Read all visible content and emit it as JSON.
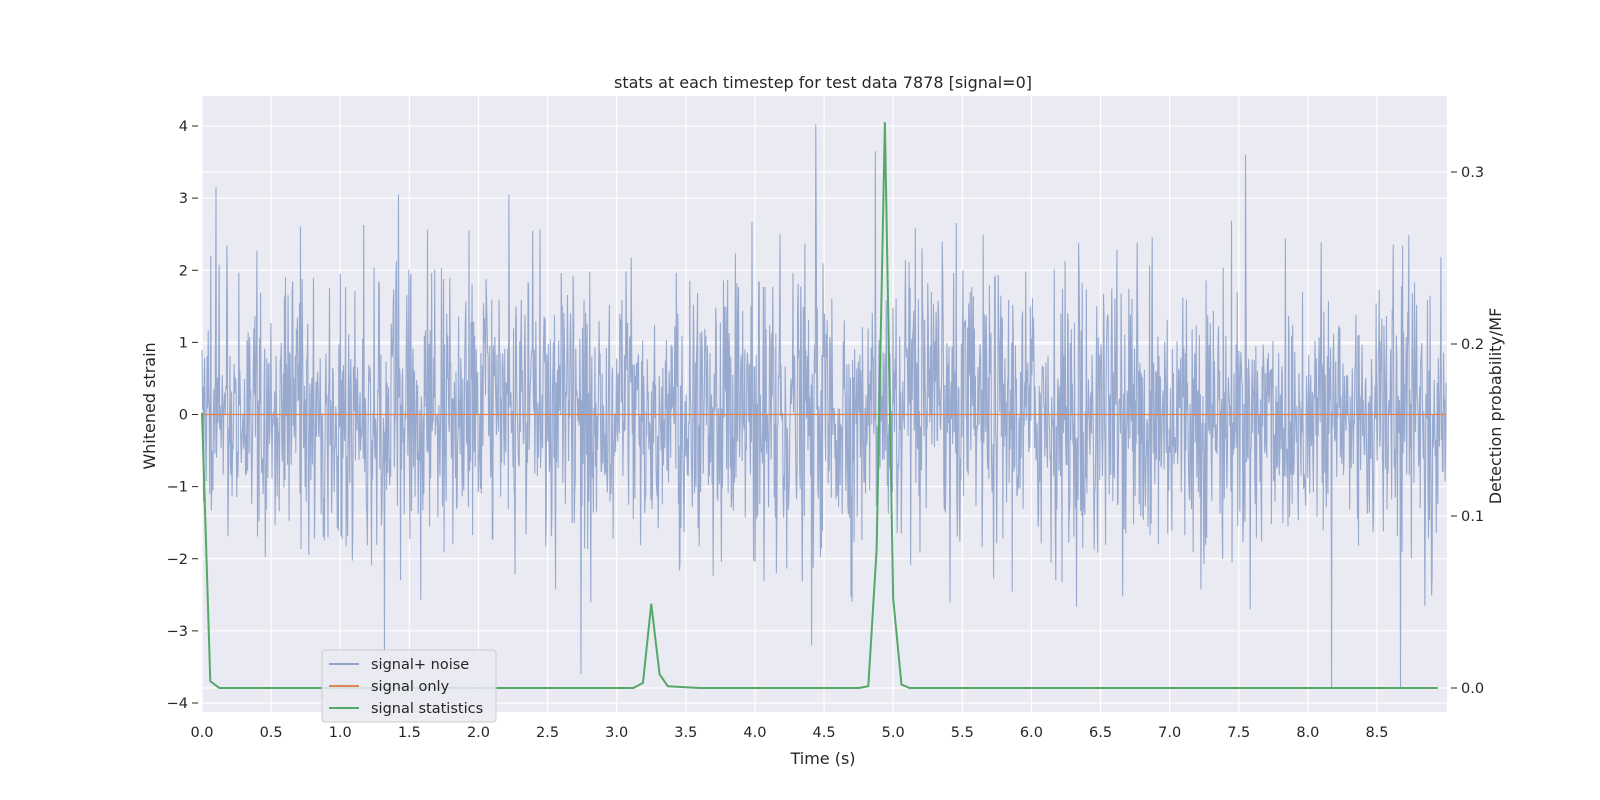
{
  "chart_data": {
    "type": "line",
    "title": "stats at each timestep for test data 7878 [signal=0]",
    "xlabel": "Time (s)",
    "ylabel": "Whitened strain",
    "y2label": "Detection probability/MF",
    "xlim": [
      0.0,
      9.0
    ],
    "ylim": [
      -4.15,
      4.4
    ],
    "y2lim": [
      -0.015,
      0.33
    ],
    "x_ticks": [
      "0.0",
      "0.5",
      "1.0",
      "1.5",
      "2.0",
      "2.5",
      "3.0",
      "3.5",
      "4.0",
      "4.5",
      "5.0",
      "5.5",
      "6.0",
      "6.5",
      "7.0",
      "7.5",
      "8.0",
      "8.5"
    ],
    "y_ticks": [
      "4",
      "3",
      "2",
      "1",
      "0",
      "−1",
      "−2",
      "−3",
      "−4"
    ],
    "y2_ticks": [
      "0.3",
      "0.2",
      "0.1",
      "0.0"
    ],
    "grid": true,
    "legend_position": "lower-left",
    "colors": {
      "noise": "#8ea2ca",
      "signal": "#dd8452",
      "stats": "#55a868",
      "background": "#eaeaf2",
      "grid": "#ffffff"
    },
    "series": [
      {
        "name": "signal+ noise",
        "description_of_values": "dense whitened noise, range approx -3.8 to 4.0",
        "spikes": [
          {
            "x": 4.44,
            "y": 4.02
          },
          {
            "x": 4.87,
            "y": 3.65
          },
          {
            "x": 7.55,
            "y": 3.6
          },
          {
            "x": 0.1,
            "y": 3.15
          },
          {
            "x": 1.42,
            "y": 3.05
          },
          {
            "x": 2.22,
            "y": 3.05
          },
          {
            "x": 8.17,
            "y": -3.8
          },
          {
            "x": 8.67,
            "y": -3.8
          },
          {
            "x": 2.74,
            "y": -3.6
          },
          {
            "x": 4.41,
            "y": -3.2
          },
          {
            "x": 1.32,
            "y": -3.3
          }
        ]
      },
      {
        "name": "signal only",
        "x": [
          0.0,
          9.0
        ],
        "y": [
          0.0,
          0.0
        ]
      },
      {
        "name": "signal statistics",
        "axis": "right",
        "x": [
          0.0,
          0.06,
          0.125,
          0.19,
          3.12,
          3.19,
          3.25,
          3.31,
          3.37,
          3.6,
          4.75,
          4.82,
          4.88,
          4.94,
          5.0,
          5.06,
          5.12,
          8.94
        ],
        "y": [
          0.16,
          0.004,
          0.0,
          0.0,
          0.0,
          0.003,
          0.049,
          0.008,
          0.001,
          0.0,
          0.0,
          0.001,
          0.08,
          0.329,
          0.052,
          0.002,
          0.0,
          0.0
        ]
      }
    ]
  }
}
